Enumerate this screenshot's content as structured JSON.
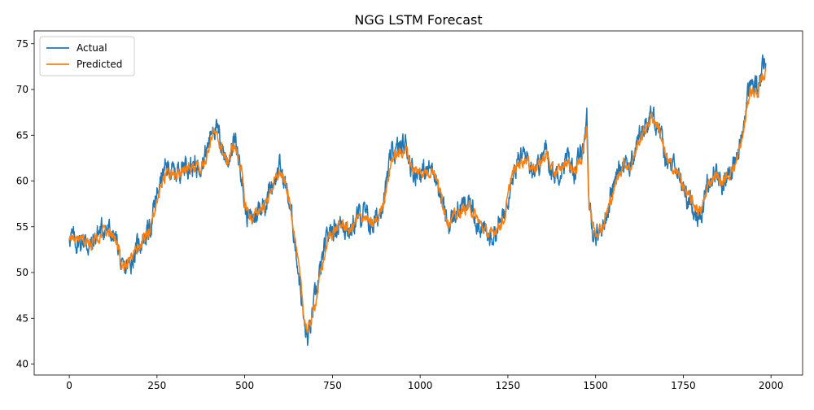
{
  "chart_data": {
    "type": "line",
    "title": "NGG LSTM Forecast",
    "xlabel": "",
    "ylabel": "",
    "xlim": [
      -100,
      2090
    ],
    "ylim": [
      38.8,
      76.4
    ],
    "xticks": [
      0,
      250,
      500,
      750,
      1000,
      1250,
      1500,
      1750,
      2000
    ],
    "yticks": [
      40,
      45,
      50,
      55,
      60,
      65,
      70,
      75
    ],
    "grid": false,
    "legend": "top-left",
    "series": [
      {
        "name": "Actual",
        "color": "#1f77b4",
        "noise": 1.2,
        "x": [
          0,
          20,
          40,
          60,
          80,
          100,
          120,
          140,
          150,
          170,
          200,
          230,
          260,
          280,
          300,
          330,
          360,
          390,
          410,
          430,
          450,
          470,
          490,
          500,
          520,
          540,
          560,
          580,
          600,
          620,
          640,
          660,
          670,
          680,
          700,
          720,
          740,
          760,
          780,
          800,
          820,
          840,
          860,
          880,
          900,
          920,
          940,
          960,
          980,
          1000,
          1020,
          1040,
          1060,
          1080,
          1100,
          1120,
          1140,
          1160,
          1180,
          1200,
          1220,
          1240,
          1260,
          1280,
          1300,
          1320,
          1340,
          1360,
          1380,
          1400,
          1420,
          1440,
          1460,
          1475,
          1480,
          1490,
          1500,
          1520,
          1540,
          1560,
          1580,
          1600,
          1620,
          1640,
          1660,
          1680,
          1700,
          1720,
          1740,
          1760,
          1780,
          1800,
          1820,
          1840,
          1860,
          1880,
          1900,
          1920,
          1940,
          1960,
          1980,
          1985
        ],
        "y": [
          54.2,
          53.2,
          53.6,
          52.8,
          54.2,
          55.0,
          54.2,
          53.0,
          49.8,
          50.8,
          53.2,
          54.8,
          60.0,
          61.5,
          60.8,
          62.0,
          61.5,
          63.0,
          66.5,
          64.5,
          62.0,
          64.5,
          61.5,
          57.0,
          55.5,
          57.0,
          57.8,
          60.0,
          61.5,
          59.0,
          54.5,
          48.0,
          44.0,
          42.5,
          47.0,
          51.0,
          54.5,
          55.0,
          55.5,
          54.5,
          56.0,
          56.5,
          55.0,
          56.0,
          59.0,
          63.0,
          63.5,
          64.0,
          61.0,
          61.0,
          61.0,
          61.5,
          58.0,
          55.0,
          56.5,
          57.0,
          57.5,
          56.0,
          54.5,
          53.5,
          55.0,
          56.0,
          61.0,
          62.0,
          63.0,
          61.5,
          62.0,
          63.5,
          60.5,
          61.5,
          62.5,
          61.0,
          63.0,
          66.5,
          58.0,
          55.0,
          54.0,
          55.0,
          58.0,
          60.5,
          62.5,
          61.5,
          64.5,
          66.0,
          67.5,
          66.0,
          62.0,
          61.5,
          60.5,
          58.0,
          57.0,
          56.0,
          60.0,
          61.0,
          59.5,
          61.0,
          62.0,
          65.5,
          71.0,
          70.0,
          72.5,
          73.0
        ]
      },
      {
        "name": "Predicted",
        "color": "#ff7f0e",
        "noise": 0.6,
        "x": [
          0,
          20,
          40,
          60,
          80,
          100,
          120,
          140,
          150,
          170,
          200,
          230,
          260,
          280,
          300,
          330,
          360,
          390,
          410,
          430,
          450,
          470,
          490,
          500,
          520,
          540,
          560,
          580,
          600,
          620,
          640,
          660,
          670,
          680,
          700,
          720,
          740,
          760,
          780,
          800,
          820,
          840,
          860,
          880,
          900,
          920,
          940,
          960,
          980,
          1000,
          1020,
          1040,
          1060,
          1080,
          1100,
          1120,
          1140,
          1160,
          1180,
          1200,
          1220,
          1240,
          1260,
          1280,
          1300,
          1320,
          1340,
          1360,
          1380,
          1400,
          1420,
          1440,
          1460,
          1475,
          1480,
          1490,
          1500,
          1520,
          1540,
          1560,
          1580,
          1600,
          1620,
          1640,
          1660,
          1680,
          1700,
          1720,
          1740,
          1760,
          1780,
          1800,
          1820,
          1840,
          1860,
          1880,
          1900,
          1920,
          1940,
          1960,
          1980,
          1985
        ],
        "y": [
          54.0,
          53.3,
          53.5,
          53.0,
          54.0,
          54.6,
          54.0,
          53.2,
          50.4,
          51.0,
          53.0,
          54.5,
          59.5,
          61.0,
          60.5,
          61.5,
          61.2,
          62.5,
          65.5,
          64.0,
          62.0,
          64.0,
          61.5,
          57.5,
          55.8,
          56.8,
          57.5,
          59.5,
          61.0,
          59.2,
          55.0,
          48.5,
          45.0,
          43.5,
          46.5,
          50.5,
          54.0,
          54.8,
          55.3,
          54.5,
          55.8,
          56.2,
          55.2,
          55.8,
          58.5,
          62.5,
          63.0,
          63.5,
          61.2,
          61.0,
          61.0,
          61.2,
          58.3,
          55.5,
          56.2,
          56.8,
          57.2,
          56.0,
          54.8,
          54.0,
          55.0,
          55.8,
          60.5,
          61.8,
          62.5,
          61.5,
          61.8,
          63.0,
          60.8,
          61.3,
          62.2,
          61.0,
          62.5,
          66.0,
          58.5,
          55.5,
          54.5,
          55.0,
          57.5,
          60.0,
          62.0,
          61.5,
          64.0,
          65.5,
          67.0,
          66.0,
          62.5,
          61.5,
          60.5,
          58.5,
          57.5,
          56.5,
          59.5,
          60.8,
          59.8,
          60.8,
          61.8,
          65.0,
          70.0,
          69.5,
          71.5,
          72.0
        ]
      }
    ]
  }
}
